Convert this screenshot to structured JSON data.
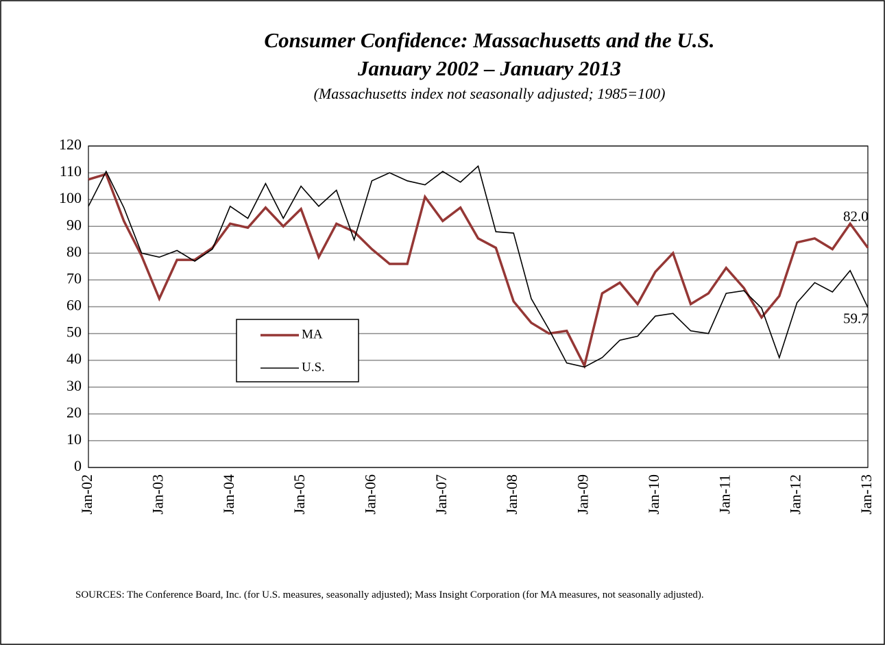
{
  "chart_data": {
    "type": "line",
    "title": "Consumer Confidence: Massachusetts and the U.S.",
    "title2": "January 2002 – January 2013",
    "subtitle": "(Massachusetts index not seasonally adjusted; 1985=100)",
    "source": "SOURCES: The Conference Board, Inc. (for U.S. measures, seasonally adjusted); Mass Insight Corporation (for MA measures, not seasonally adjusted).",
    "categories": [
      "Jan-02",
      null,
      null,
      null,
      "Jan-03",
      null,
      null,
      null,
      "Jan-04",
      null,
      null,
      null,
      "Jan-05",
      null,
      null,
      null,
      "Jan-06",
      null,
      null,
      null,
      "Jan-07",
      null,
      null,
      null,
      "Jan-08",
      null,
      null,
      null,
      "Jan-09",
      null,
      null,
      null,
      "Jan-10",
      null,
      null,
      null,
      "Jan-11",
      null,
      null,
      null,
      "Jan-12",
      null,
      null,
      null,
      "Jan-13"
    ],
    "series": [
      {
        "name": "MA",
        "color": "#953735",
        "values": [
          107.5,
          109.5,
          92,
          79,
          63,
          77.5,
          77.5,
          82,
          91,
          89.5,
          97,
          90,
          96.5,
          78.5,
          91,
          88,
          81.5,
          76,
          76,
          101,
          92,
          97,
          85.5,
          82,
          62,
          54,
          50,
          51,
          38,
          65,
          69,
          61,
          73,
          80,
          61,
          65,
          74.5,
          67,
          56,
          64,
          84,
          85.5,
          81.5,
          91,
          82.0
        ],
        "value_labels": [
          null,
          null,
          null,
          null,
          null,
          null,
          null,
          null,
          null,
          null,
          null,
          null,
          null,
          null,
          null,
          null,
          null,
          null,
          null,
          null,
          null,
          null,
          null,
          null,
          null,
          null,
          null,
          null,
          null,
          null,
          null,
          null,
          null,
          null,
          null,
          null,
          null,
          null,
          null,
          null,
          null,
          null,
          null,
          null,
          "82.0"
        ]
      },
      {
        "name": "U.S.",
        "color": "#000000",
        "values": [
          97.5,
          110.5,
          97,
          80,
          78.5,
          81,
          77,
          81.5,
          97.5,
          93,
          106,
          93,
          105,
          97.5,
          103.5,
          85,
          107,
          110,
          107,
          105.5,
          110.5,
          106.5,
          112.5,
          88,
          87.5,
          63,
          51.5,
          39,
          37.5,
          41,
          47.5,
          49,
          56.5,
          57.5,
          51,
          50,
          65,
          66,
          59.5,
          41,
          61.5,
          69,
          65.5,
          73.5,
          59.7
        ],
        "value_labels": [
          null,
          null,
          null,
          null,
          null,
          null,
          null,
          null,
          null,
          null,
          null,
          null,
          null,
          null,
          null,
          null,
          null,
          null,
          null,
          null,
          null,
          null,
          null,
          null,
          null,
          null,
          null,
          null,
          null,
          null,
          null,
          null,
          null,
          null,
          null,
          null,
          null,
          null,
          null,
          null,
          null,
          null,
          null,
          null,
          "59.7"
        ]
      }
    ],
    "ylim": [
      0,
      120
    ],
    "yticks": [
      0,
      10,
      20,
      30,
      40,
      50,
      60,
      70,
      80,
      90,
      100,
      110,
      120
    ],
    "grid": true
  }
}
